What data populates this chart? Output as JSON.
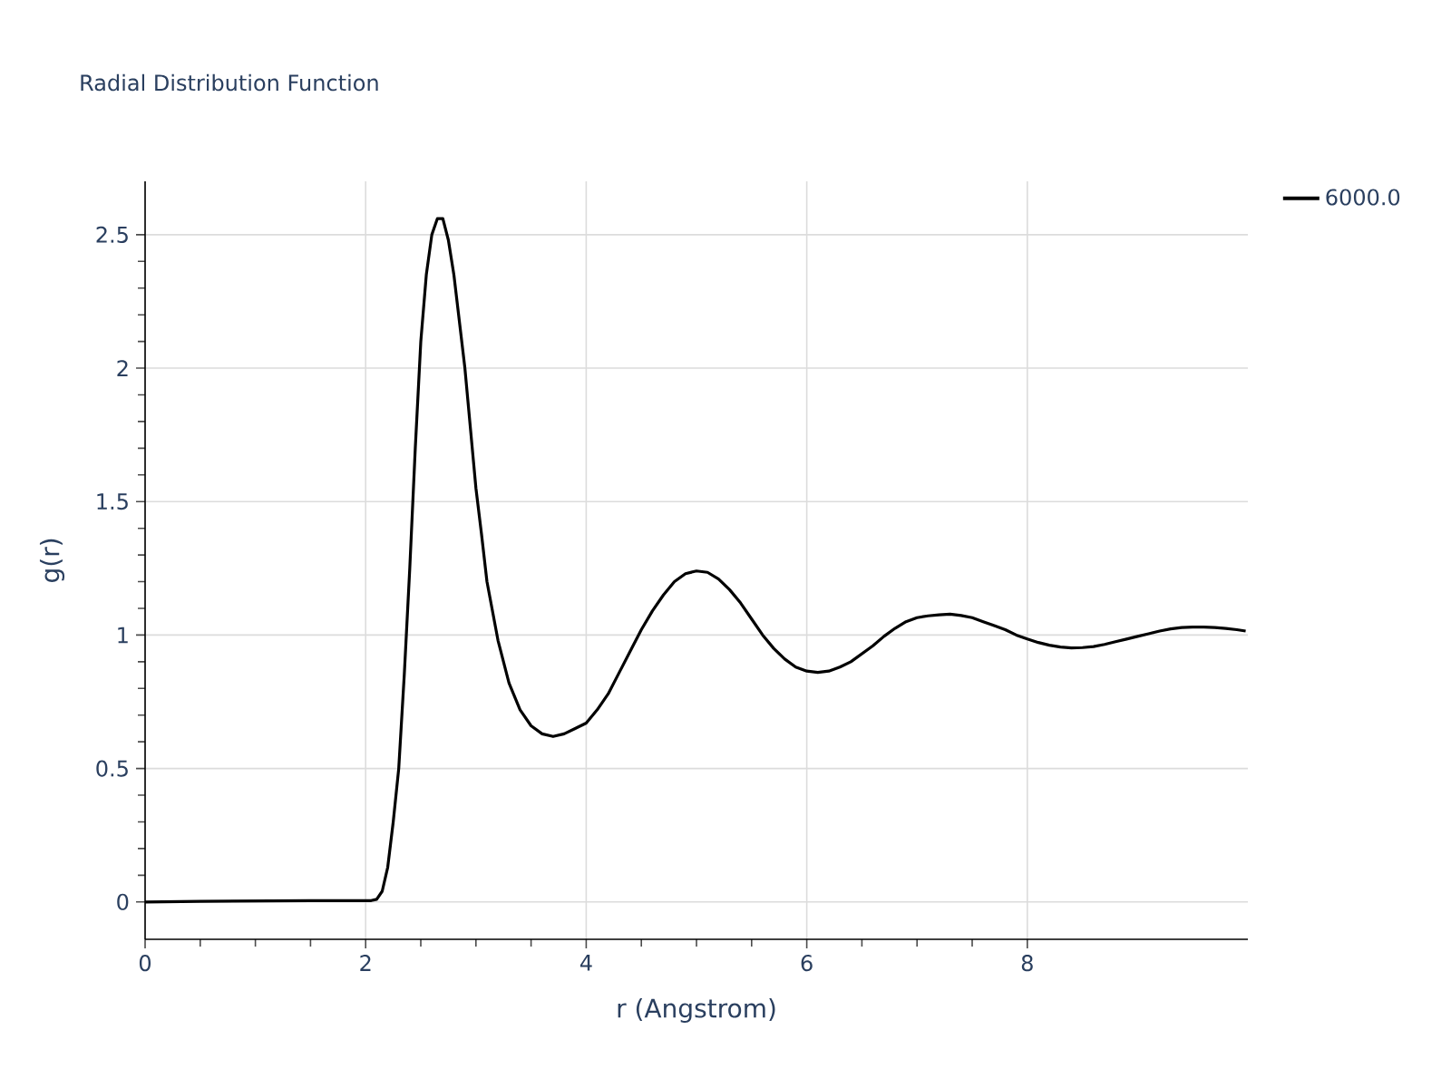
{
  "chart_data": {
    "type": "line",
    "title": "Radial Distribution Function",
    "xlabel": "r (Angstrom)",
    "ylabel": "g(r)",
    "x": [
      0,
      0.5,
      1.5,
      2.05,
      2.1,
      2.15,
      2.2,
      2.25,
      2.3,
      2.35,
      2.4,
      2.45,
      2.5,
      2.55,
      2.6,
      2.65,
      2.7,
      2.75,
      2.8,
      2.9,
      3.0,
      3.05,
      3.1,
      3.2,
      3.3,
      3.4,
      3.5,
      3.6,
      3.7,
      3.8,
      3.9,
      4.0,
      4.1,
      4.2,
      4.3,
      4.4,
      4.5,
      4.6,
      4.7,
      4.8,
      4.9,
      5.0,
      5.1,
      5.2,
      5.3,
      5.4,
      5.5,
      5.6,
      5.7,
      5.8,
      5.9,
      6.0,
      6.1,
      6.2,
      6.3,
      6.4,
      6.5,
      6.6,
      6.7,
      6.8,
      6.9,
      7.0,
      7.1,
      7.2,
      7.3,
      7.4,
      7.5,
      7.6,
      7.7,
      7.8,
      7.9,
      8.0,
      8.1,
      8.2,
      8.3,
      8.4,
      8.5,
      8.6,
      8.7,
      8.8,
      8.9,
      9.0,
      9.1,
      9.2,
      9.3,
      9.4,
      9.5,
      9.6,
      9.7,
      9.8,
      9.9,
      9.98
    ],
    "series": [
      {
        "name": "6000.0",
        "color": "#000000",
        "values": [
          0,
          0.002,
          0.005,
          0.005,
          0.01,
          0.04,
          0.13,
          0.3,
          0.5,
          0.85,
          1.25,
          1.7,
          2.1,
          2.35,
          2.5,
          2.56,
          2.56,
          2.48,
          2.35,
          2.0,
          1.55,
          1.38,
          1.2,
          0.98,
          0.82,
          0.72,
          0.66,
          0.63,
          0.62,
          0.63,
          0.65,
          0.67,
          0.72,
          0.78,
          0.86,
          0.94,
          1.02,
          1.09,
          1.15,
          1.2,
          1.23,
          1.24,
          1.235,
          1.21,
          1.17,
          1.12,
          1.06,
          1.0,
          0.95,
          0.91,
          0.88,
          0.865,
          0.86,
          0.865,
          0.88,
          0.9,
          0.93,
          0.96,
          0.995,
          1.025,
          1.05,
          1.065,
          1.072,
          1.076,
          1.078,
          1.073,
          1.065,
          1.05,
          1.035,
          1.02,
          1.0,
          0.985,
          0.972,
          0.962,
          0.955,
          0.952,
          0.953,
          0.957,
          0.965,
          0.975,
          0.985,
          0.995,
          1.005,
          1.015,
          1.023,
          1.028,
          1.03,
          1.03,
          1.028,
          1.025,
          1.02,
          1.015
        ]
      }
    ],
    "xlim": [
      0,
      10
    ],
    "ylim": [
      -0.14,
      2.7
    ],
    "xticks": [
      0,
      2,
      4,
      6,
      8
    ],
    "yticks": [
      0,
      0.5,
      1,
      1.5,
      2,
      2.5
    ],
    "grid": true,
    "legend": "top right",
    "marker": "none",
    "line_style": "solid"
  }
}
